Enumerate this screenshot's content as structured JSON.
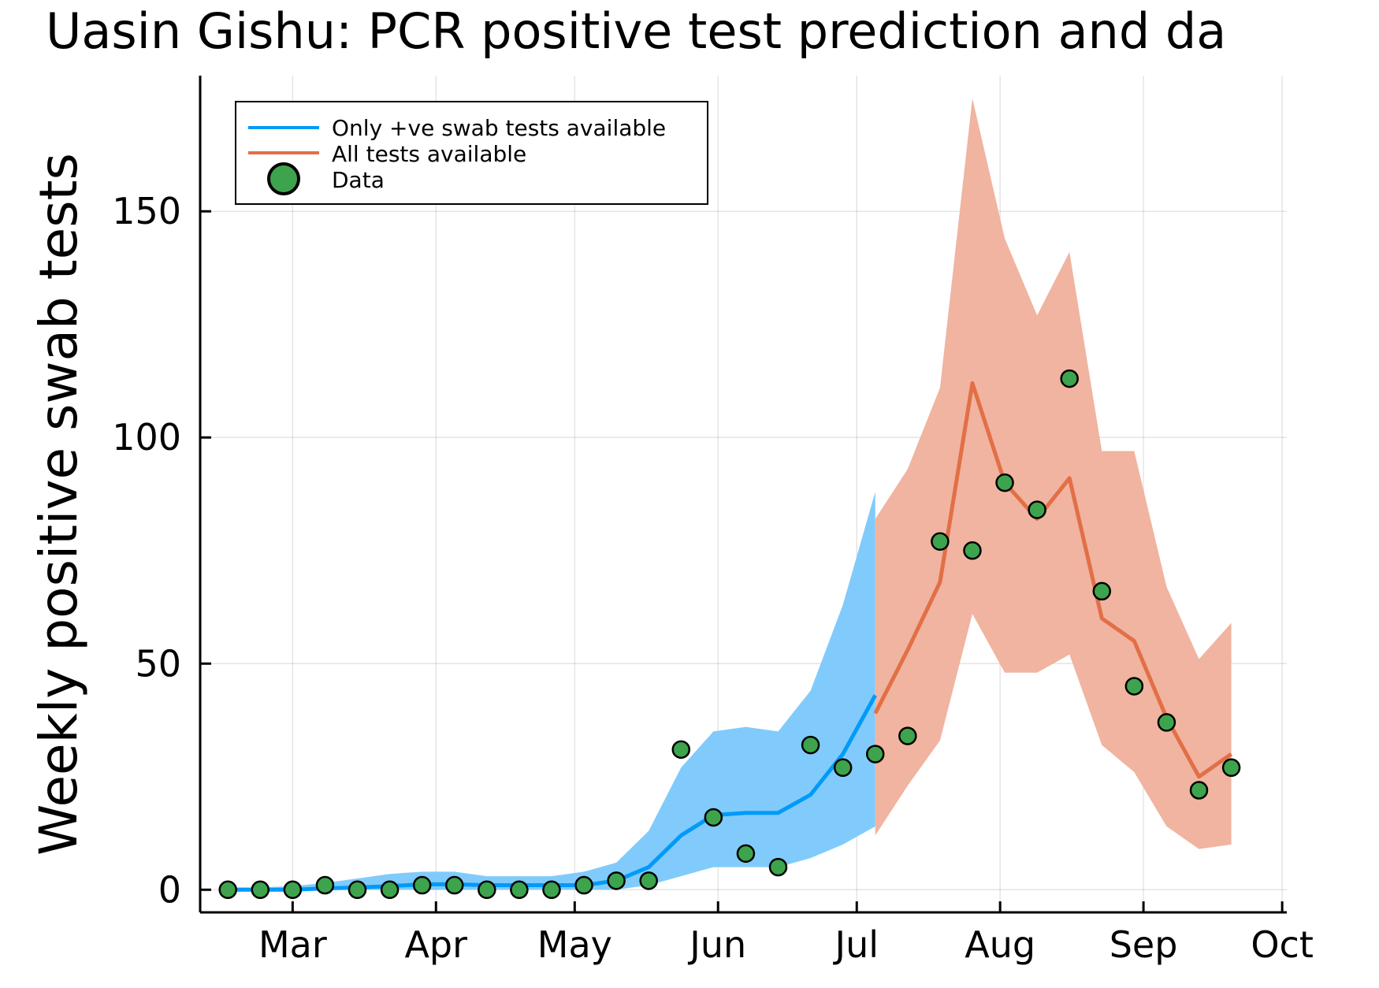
{
  "chart_data": {
    "type": "line",
    "title": "Uasin Gishu: PCR positive test prediction and da",
    "xlabel": "",
    "ylabel": "Weekly positive swab tests",
    "x_type": "date",
    "xlim": [
      "2021-02-09",
      "2021-10-02"
    ],
    "ylim": [
      -5,
      180
    ],
    "x_ticks": [
      {
        "date": "2021-03-01",
        "label": "Mar"
      },
      {
        "date": "2021-04-01",
        "label": "Apr"
      },
      {
        "date": "2021-05-01",
        "label": "May"
      },
      {
        "date": "2021-06-01",
        "label": "Jun"
      },
      {
        "date": "2021-07-01",
        "label": "Jul"
      },
      {
        "date": "2021-08-01",
        "label": "Aug"
      },
      {
        "date": "2021-09-01",
        "label": "Sep"
      },
      {
        "date": "2021-10-01",
        "label": "Oct"
      }
    ],
    "y_ticks": [
      {
        "value": 0,
        "label": "0"
      },
      {
        "value": 50,
        "label": "50"
      },
      {
        "value": 100,
        "label": "100"
      },
      {
        "value": 150,
        "label": "150"
      }
    ],
    "grid": true,
    "legend_position": "top-left",
    "series": [
      {
        "name": "Only +ve swab tests available",
        "color": "#009af9",
        "band_color": "#80cbfc",
        "x": [
          "2021-02-15",
          "2021-02-22",
          "2021-03-01",
          "2021-03-08",
          "2021-03-15",
          "2021-03-22",
          "2021-03-29",
          "2021-04-05",
          "2021-04-12",
          "2021-04-19",
          "2021-04-26",
          "2021-05-03",
          "2021-05-10",
          "2021-05-17",
          "2021-05-24",
          "2021-05-31",
          "2021-06-07",
          "2021-06-14",
          "2021-06-21",
          "2021-06-28",
          "2021-07-05"
        ],
        "values": [
          0,
          0,
          0,
          0.3,
          0.5,
          0.8,
          1.2,
          1.2,
          1,
          1,
          1,
          1,
          2,
          5,
          12,
          16.5,
          17,
          17,
          21,
          30,
          43
        ],
        "lower": [
          0,
          0,
          0,
          0,
          0,
          0,
          0,
          0,
          0,
          0,
          0,
          0,
          0,
          1,
          3,
          5,
          5,
          5,
          7,
          10,
          14
        ],
        "upper": [
          0.5,
          0.5,
          0.8,
          1.5,
          2.5,
          3.5,
          4,
          4,
          3,
          3,
          3,
          4,
          6,
          13,
          27,
          35,
          36,
          35,
          44,
          63,
          88
        ]
      },
      {
        "name": "All tests available",
        "color": "#e26f46",
        "band_color": "#f0b4a0",
        "x": [
          "2021-07-05",
          "2021-07-12",
          "2021-07-19",
          "2021-07-26",
          "2021-08-02",
          "2021-08-09",
          "2021-08-16",
          "2021-08-23",
          "2021-08-30",
          "2021-09-06",
          "2021-09-13",
          "2021-09-20"
        ],
        "values": [
          39,
          53,
          68,
          112,
          90,
          82,
          91,
          60,
          55,
          38,
          25,
          30
        ],
        "lower": [
          12,
          23,
          33,
          61,
          48,
          48,
          52,
          32,
          26,
          14,
          9,
          10
        ],
        "upper": [
          82,
          93,
          111,
          175,
          144,
          127,
          141,
          97,
          97,
          67,
          51,
          59
        ]
      }
    ],
    "scatter": {
      "name": "Data",
      "color": "#3da44d",
      "x": [
        "2021-02-15",
        "2021-02-22",
        "2021-03-01",
        "2021-03-08",
        "2021-03-15",
        "2021-03-22",
        "2021-03-29",
        "2021-04-05",
        "2021-04-12",
        "2021-04-19",
        "2021-04-26",
        "2021-05-03",
        "2021-05-10",
        "2021-05-17",
        "2021-05-24",
        "2021-05-31",
        "2021-06-07",
        "2021-06-14",
        "2021-06-21",
        "2021-06-28",
        "2021-07-05",
        "2021-07-12",
        "2021-07-19",
        "2021-07-26",
        "2021-08-02",
        "2021-08-09",
        "2021-08-16",
        "2021-08-23",
        "2021-08-30",
        "2021-09-06",
        "2021-09-13",
        "2021-09-20"
      ],
      "y": [
        0,
        0,
        0,
        1,
        0,
        0,
        1,
        1,
        0,
        0,
        0,
        1,
        2,
        2,
        31,
        16,
        8,
        5,
        32,
        27,
        30,
        34,
        77,
        75,
        90,
        84,
        113,
        66,
        45,
        37,
        22,
        27
      ]
    }
  }
}
